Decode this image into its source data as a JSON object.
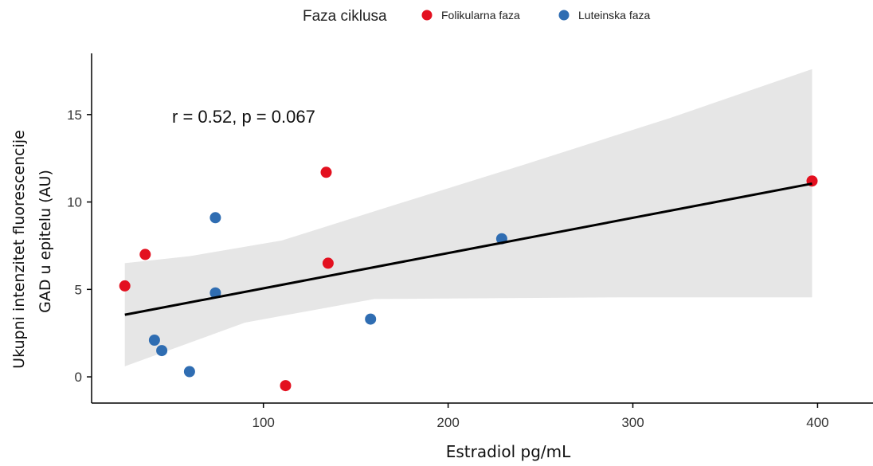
{
  "chart_data": {
    "type": "scatter",
    "xlabel": "Estradiol pg/mL",
    "ylabel_lines": [
      "Ukupni intenzitet fluorescencije",
      "GAD u epitelu (AU)"
    ],
    "annotation": "r = 0.52, p = 0.067",
    "xlim": [
      7,
      430
    ],
    "ylim": [
      -1.5,
      18.5
    ],
    "x_ticks": [
      100,
      200,
      300,
      400
    ],
    "y_ticks": [
      0,
      5,
      10,
      15
    ],
    "grid": false,
    "legend": {
      "title": "Faza ciklusa",
      "placement": "top",
      "items": [
        {
          "label": "Folikularna faza",
          "color": "#e3101f"
        },
        {
          "label": "Luteinska faza",
          "color": "#2f6db2"
        }
      ]
    },
    "series": [
      {
        "name": "Folikularna faza",
        "color": "#e3101f",
        "points": [
          [
            25,
            5.2
          ],
          [
            36,
            7.0
          ],
          [
            112,
            -0.5
          ],
          [
            134,
            11.7
          ],
          [
            135,
            6.5
          ],
          [
            397,
            11.2
          ]
        ]
      },
      {
        "name": "Luteinska faza",
        "color": "#2f6db2",
        "points": [
          [
            41,
            2.1
          ],
          [
            45,
            1.5
          ],
          [
            60,
            0.3
          ],
          [
            74,
            9.1
          ],
          [
            74,
            4.8
          ],
          [
            158,
            3.3
          ],
          [
            229,
            7.9
          ]
        ]
      }
    ],
    "regression": {
      "color": "#000000",
      "band_color": "#e6e6e6",
      "line": [
        [
          25,
          3.55
        ],
        [
          397,
          11.05
        ]
      ],
      "ci_lower": [
        [
          25,
          0.6
        ],
        [
          90,
          3.1
        ],
        [
          160,
          4.45
        ],
        [
          230,
          4.5
        ],
        [
          300,
          4.55
        ],
        [
          397,
          4.55
        ]
      ],
      "ci_upper": [
        [
          25,
          6.5
        ],
        [
          60,
          6.9
        ],
        [
          110,
          7.8
        ],
        [
          170,
          9.8
        ],
        [
          240,
          12.1
        ],
        [
          320,
          14.8
        ],
        [
          397,
          17.6
        ]
      ]
    }
  }
}
